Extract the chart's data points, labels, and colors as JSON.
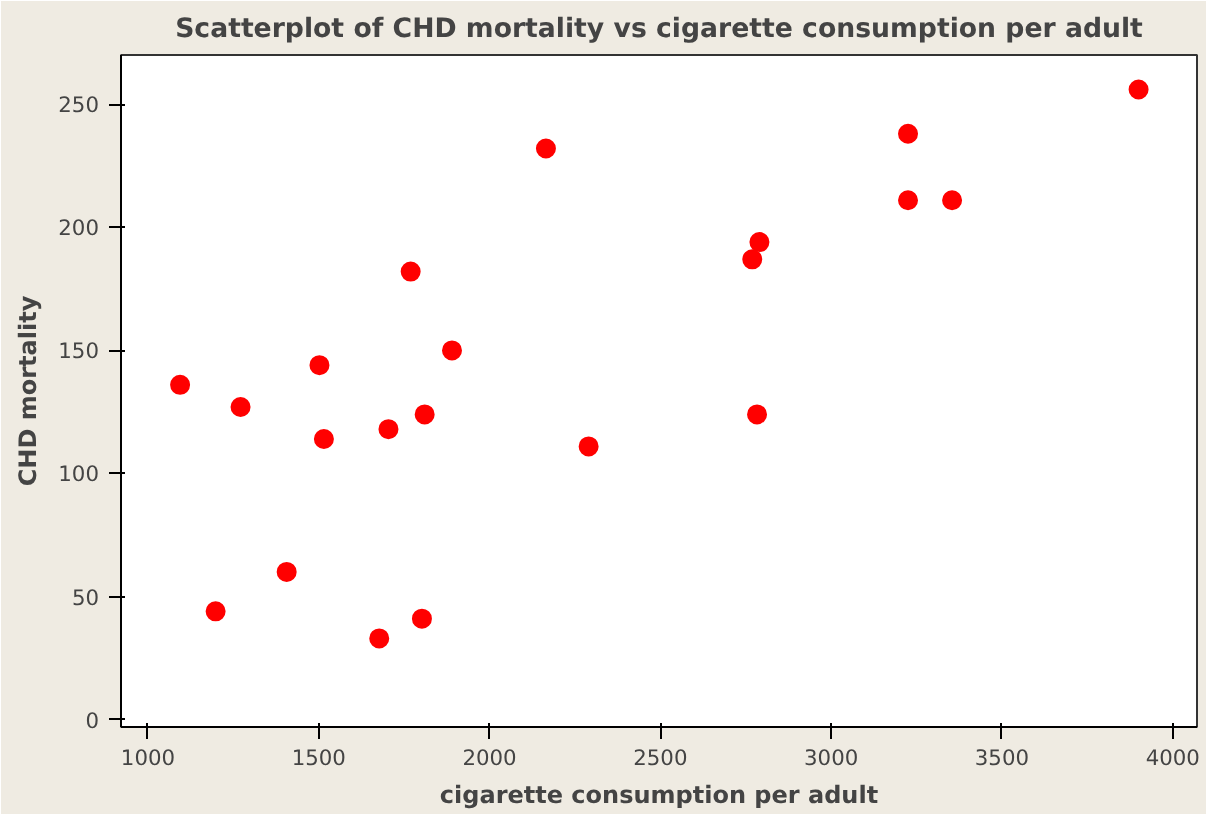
{
  "chart_data": {
    "type": "scatter",
    "title": "Scatterplot of CHD mortality vs cigarette consumption per adult",
    "xlabel": "cigarette consumption per adult",
    "ylabel": "CHD mortality",
    "x": [
      1094,
      1271,
      1502,
      1515,
      1406,
      1198,
      1769,
      1890,
      1810,
      1704,
      1677,
      1802,
      2165,
      2290,
      2769,
      2790,
      2783,
      3225,
      3225,
      3354,
      3900
    ],
    "series": [
      {
        "color": "#ff0000",
        "values": [
          136,
          127,
          144,
          114,
          60,
          44,
          182,
          150,
          124,
          118,
          33,
          41,
          232,
          111,
          187,
          194,
          124,
          238,
          211,
          211,
          256
        ]
      }
    ],
    "xlim": [
      921,
      4071
    ],
    "ylim": [
      -3,
      270
    ],
    "xticks": [
      1000,
      1500,
      2000,
      2500,
      3000,
      3500,
      4000
    ],
    "yticks": [
      0,
      50,
      100,
      150,
      200,
      250
    ],
    "marker": "circle",
    "grid": false
  }
}
